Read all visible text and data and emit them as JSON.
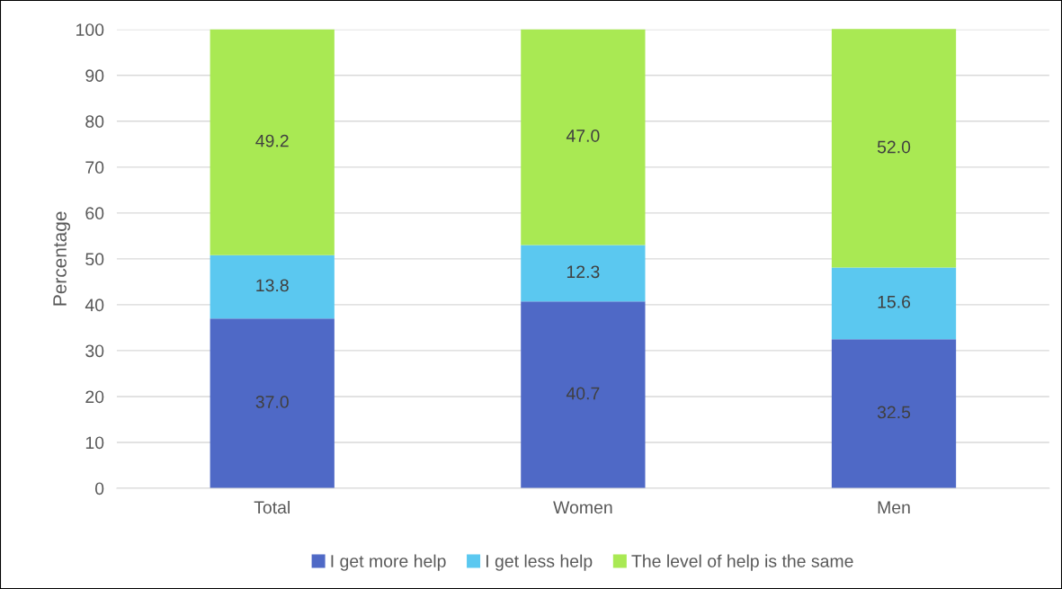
{
  "chart_data": {
    "type": "bar",
    "stacked": true,
    "ylabel": "Percentage",
    "categories": [
      "Total",
      "Women",
      "Men"
    ],
    "series": [
      {
        "name": "I get more help",
        "color": "#4f69c6",
        "values": [
          37.0,
          40.7,
          32.5
        ],
        "value_labels": [
          "37.0",
          "40.7",
          "32.5"
        ]
      },
      {
        "name": "I get less help",
        "color": "#5bc8f0",
        "values": [
          13.8,
          12.3,
          15.6
        ],
        "value_labels": [
          "13.8",
          "12.3",
          "15.6"
        ]
      },
      {
        "name": "The level of help is the same",
        "color": "#a9e953",
        "values": [
          49.2,
          47.0,
          52.0
        ],
        "value_labels": [
          "49.2",
          "47.0",
          "52.0"
        ]
      }
    ],
    "ylim": [
      0,
      100
    ],
    "yticks": [
      0,
      10,
      20,
      30,
      40,
      50,
      60,
      70,
      80,
      90,
      100
    ],
    "grid": "y",
    "legend": "bottom"
  }
}
